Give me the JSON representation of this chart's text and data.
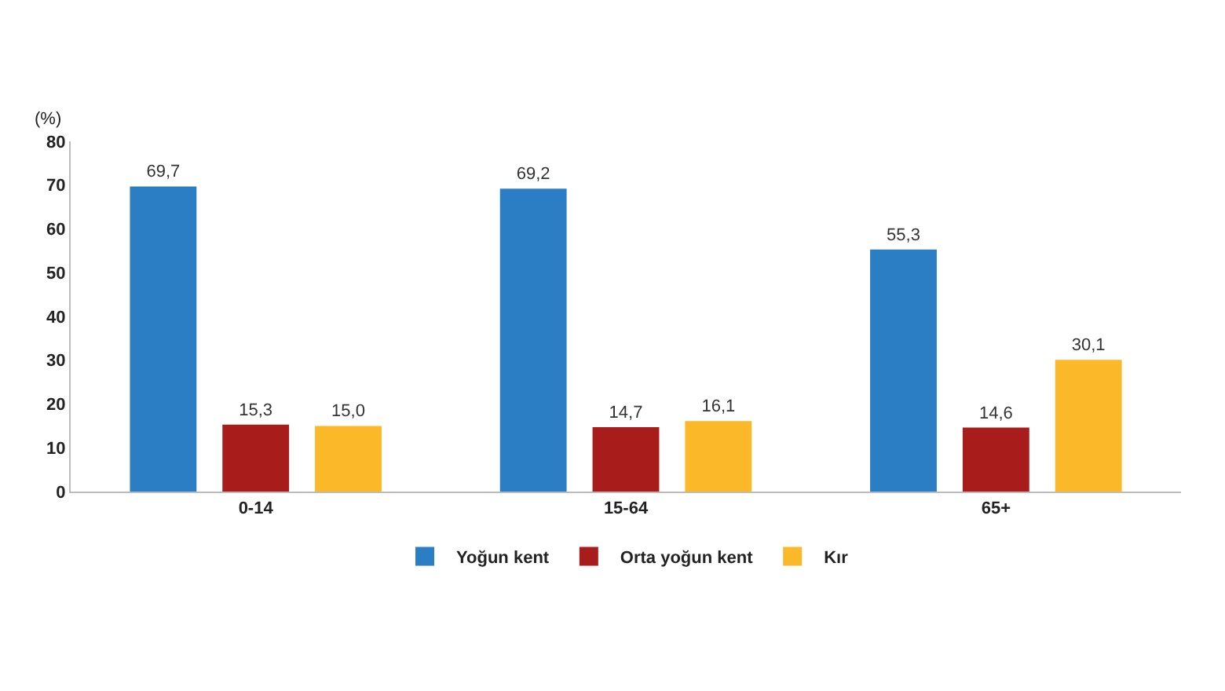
{
  "chart_data": {
    "type": "bar",
    "ylabel": "(%)",
    "categories": [
      "0-14",
      "15-64",
      "65+"
    ],
    "series": [
      {
        "name": "Yoğun kent",
        "color": "#2b7ec4",
        "values": [
          69.7,
          69.2,
          55.3
        ],
        "value_labels": [
          "69,7",
          "69,2",
          "55,3"
        ]
      },
      {
        "name": "Orta yoğun kent",
        "color": "#a81c1c",
        "values": [
          15.3,
          14.7,
          14.6
        ],
        "value_labels": [
          "15,3",
          "14,7",
          "14,6"
        ]
      },
      {
        "name": "Kır",
        "color": "#fbb829",
        "values": [
          15.0,
          16.1,
          30.1
        ],
        "value_labels": [
          "15,0",
          "16,1",
          "30,1"
        ]
      }
    ],
    "ylim": [
      0,
      80
    ],
    "yticks": [
      0,
      10,
      20,
      30,
      40,
      50,
      60,
      70,
      80
    ],
    "grid": false,
    "legend": "bottom"
  }
}
